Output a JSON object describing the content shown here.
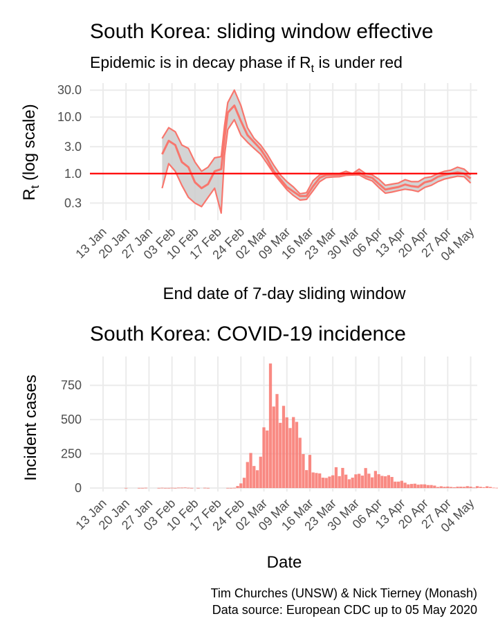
{
  "rt_chart": {
    "title": "South Korea: sliding window effective",
    "subtitle": "Epidemic is in decay phase if R",
    "subtitle_sub": "t",
    "subtitle_tail": "  is under red",
    "ylabel": "R",
    "ylabel_sub": "t",
    "ylabel_tail": " (log scale)",
    "xlabel": "End date of 7-day sliding window"
  },
  "incidence_chart": {
    "title": "South Korea: COVID-19 incidence",
    "ylabel": "Incident cases",
    "xlabel": "Date"
  },
  "caption": {
    "line1": "Tim Churches (UNSW) & Nick Tierney (Monash)",
    "line2": "Data source: European CDC up to 05 May 2020"
  },
  "colors": {
    "series": "#f8766d",
    "band": "#cccccc",
    "threshold": "#ff0000",
    "bar": "#f8766d"
  },
  "chart_data": [
    {
      "type": "line",
      "x_tick_labels": [
        "13 Jan",
        "20 Jan",
        "27 Jan",
        "03 Feb",
        "10 Feb",
        "17 Feb",
        "24 Feb",
        "02 Mar",
        "09 Mar",
        "16 Mar",
        "23 Mar",
        "30 Mar",
        "06 Apr",
        "13 Apr",
        "20 Apr",
        "27 Apr",
        "04 May"
      ],
      "y_scale": "log",
      "y_ticks": [
        0.3,
        1.0,
        3.0,
        10.0,
        30.0
      ],
      "y_tick_labels": [
        "0.3",
        "1.0",
        "3.0",
        "10.0",
        "30.0"
      ],
      "xlim": [
        "2020-01-09",
        "2020-05-06"
      ],
      "ylim": [
        0.15,
        40
      ],
      "threshold": 1.0,
      "x": [
        "2020-01-31",
        "2020-02-02",
        "2020-02-04",
        "2020-02-06",
        "2020-02-08",
        "2020-02-10",
        "2020-02-12",
        "2020-02-14",
        "2020-02-16",
        "2020-02-18",
        "2020-02-19",
        "2020-02-20",
        "2020-02-22",
        "2020-02-24",
        "2020-02-26",
        "2020-02-28",
        "2020-03-01",
        "2020-03-03",
        "2020-03-05",
        "2020-03-07",
        "2020-03-09",
        "2020-03-11",
        "2020-03-13",
        "2020-03-15",
        "2020-03-17",
        "2020-03-19",
        "2020-03-21",
        "2020-03-23",
        "2020-03-25",
        "2020-03-27",
        "2020-03-29",
        "2020-03-31",
        "2020-04-02",
        "2020-04-04",
        "2020-04-06",
        "2020-04-08",
        "2020-04-10",
        "2020-04-12",
        "2020-04-14",
        "2020-04-16",
        "2020-04-18",
        "2020-04-20",
        "2020-04-22",
        "2020-04-24",
        "2020-04-26",
        "2020-04-28",
        "2020-04-30",
        "2020-05-02",
        "2020-05-04"
      ],
      "series": [
        {
          "role": "upper",
          "values": [
            4.2,
            6.5,
            5.5,
            3.2,
            2.8,
            1.6,
            1.1,
            1.3,
            1.9,
            2.0,
            7.0,
            18,
            30,
            16,
            6.5,
            4.2,
            3.2,
            2.2,
            1.4,
            0.95,
            0.72,
            0.58,
            0.44,
            0.46,
            0.75,
            0.95,
            1.0,
            1.0,
            1.0,
            1.1,
            1.0,
            1.2,
            1.0,
            0.95,
            0.8,
            0.62,
            0.65,
            0.68,
            0.78,
            0.72,
            0.72,
            0.84,
            0.88,
            1.0,
            1.1,
            1.15,
            1.3,
            1.2,
            0.95
          ]
        },
        {
          "role": "median",
          "values": [
            2.2,
            3.8,
            3.2,
            1.6,
            1.3,
            0.7,
            0.55,
            0.65,
            1.1,
            1.2,
            4.2,
            12,
            16,
            8.5,
            4.8,
            3.6,
            2.7,
            1.8,
            1.1,
            0.8,
            0.58,
            0.48,
            0.4,
            0.4,
            0.6,
            0.84,
            0.94,
            0.94,
            0.95,
            1.0,
            1.0,
            1.05,
            0.9,
            0.84,
            0.66,
            0.52,
            0.55,
            0.58,
            0.64,
            0.6,
            0.58,
            0.7,
            0.75,
            0.88,
            0.95,
            1.0,
            1.05,
            1.0,
            0.82
          ]
        },
        {
          "role": "lower",
          "values": [
            0.55,
            1.5,
            1.1,
            0.62,
            0.38,
            0.3,
            0.26,
            0.38,
            0.55,
            0.2,
            2.1,
            6.0,
            9,
            4.8,
            3.6,
            2.8,
            2.2,
            1.5,
            1.0,
            0.72,
            0.52,
            0.41,
            0.34,
            0.35,
            0.5,
            0.72,
            0.85,
            0.87,
            0.88,
            0.93,
            0.94,
            0.95,
            0.82,
            0.74,
            0.57,
            0.45,
            0.47,
            0.5,
            0.53,
            0.51,
            0.48,
            0.57,
            0.62,
            0.72,
            0.8,
            0.85,
            0.9,
            0.88,
            0.68
          ]
        }
      ]
    },
    {
      "type": "bar",
      "x_tick_labels": [
        "13 Jan",
        "20 Jan",
        "27 Jan",
        "03 Feb",
        "10 Feb",
        "17 Feb",
        "24 Feb",
        "02 Mar",
        "09 Mar",
        "16 Mar",
        "23 Mar",
        "30 Mar",
        "06 Apr",
        "13 Apr",
        "20 Apr",
        "27 Apr",
        "04 May"
      ],
      "y_ticks": [
        0,
        250,
        500,
        750
      ],
      "ylim": [
        -25,
        960
      ],
      "xlim": [
        "2020-01-09",
        "2020-05-06"
      ],
      "x_start": "2020-01-20",
      "values": [
        1,
        0,
        0,
        0,
        1,
        1,
        2,
        0,
        0,
        0,
        1,
        2,
        1,
        1,
        2,
        1,
        3,
        3,
        4,
        2,
        1,
        0,
        1,
        0,
        2,
        1,
        0,
        0,
        0,
        0,
        0,
        1,
        1,
        2,
        15,
        34,
        75,
        190,
        256,
        161,
        130,
        229,
        443,
        420,
        909,
        595,
        686,
        476,
        600,
        516,
        438,
        518,
        483,
        367,
        248,
        131,
        242,
        114,
        110,
        107,
        76,
        74,
        84,
        93,
        152,
        87,
        147,
        98,
        64,
        76,
        100,
        104,
        91,
        146,
        105,
        78,
        125,
        101,
        89,
        86,
        94,
        81,
        47,
        47,
        53,
        39,
        27,
        30,
        32,
        25,
        27,
        27,
        22,
        22,
        18,
        8,
        13,
        9,
        11,
        8,
        6,
        10,
        10,
        9,
        14,
        10,
        4,
        14,
        9,
        6,
        13,
        8,
        3,
        2
      ]
    }
  ]
}
